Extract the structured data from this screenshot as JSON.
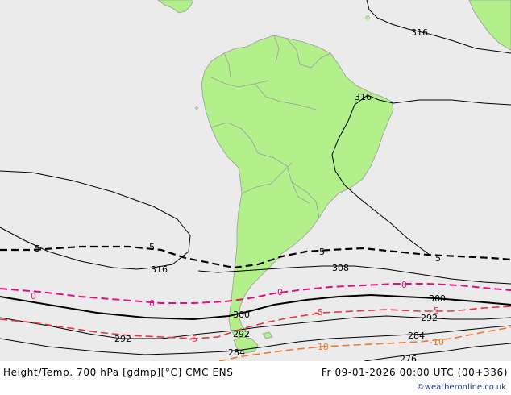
{
  "footer": {
    "title": "Height/Temp. 700 hPa [gdmp][°C] CMC ENS",
    "valid_time": "Fr 09-01-2026 00:00 UTC (00+336)",
    "credit": "©weatheronline.co.uk"
  },
  "colors": {
    "ocean": "#ebebeb",
    "land": "#b3f08c",
    "border": "#9a9a9a",
    "height_contour": "#000000",
    "temp_0": "#e0107e",
    "temp_minus5": "#e8343c",
    "temp_minus10": "#f07828",
    "temp_plus5": "#000000",
    "credit": "#1a3c8c"
  },
  "contour_labels": {
    "h316_a": "316",
    "h316_b": "316",
    "h316_c": "316",
    "h308": "308",
    "h300_a": "300",
    "h300_b": "300",
    "h292_a": "292",
    "h292_b": "292",
    "h292_c": "292",
    "h284_a": "284",
    "h284_b": "284",
    "h276": "276",
    "t5_a": "5",
    "t5_b": "5",
    "t5_c": "5",
    "t5_d": "5",
    "t0_a": "0",
    "t0_b": "0",
    "t0_c": "0",
    "t0_d": "0",
    "tm5_a": "-5",
    "tm5_b": "-5",
    "tm5_c": "-5",
    "tm10_a": "-10",
    "tm10_b": "-10"
  }
}
